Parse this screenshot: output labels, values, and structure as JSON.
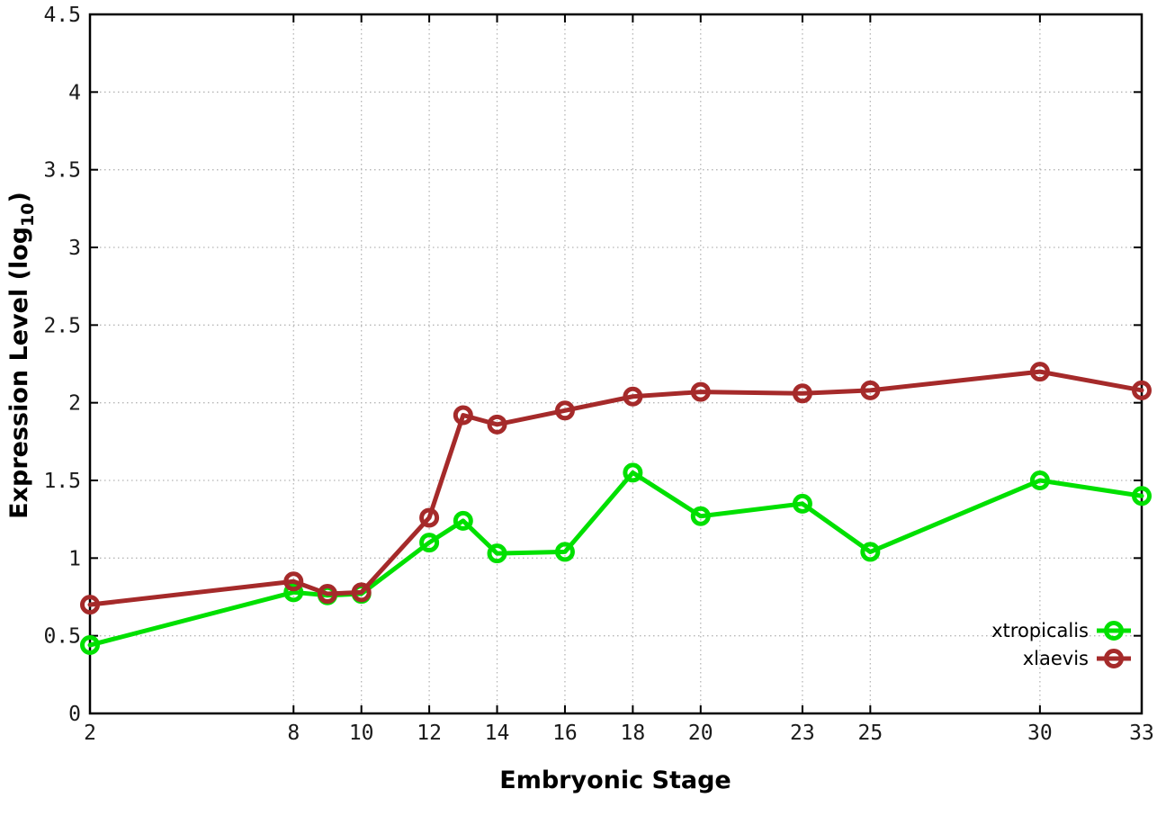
{
  "chart_data": {
    "type": "line",
    "title": "",
    "xlabel": "Embryonic Stage",
    "ylabel": "Expression Level (log10)",
    "ylabel_parts": {
      "prefix": "Expression Level (log",
      "subscript": "10",
      "suffix": ")"
    },
    "xlim": [
      2,
      33
    ],
    "ylim": [
      0,
      4.5
    ],
    "y_tick_step": 0.5,
    "x_ticks": [
      2,
      8,
      10,
      12,
      14,
      16,
      18,
      20,
      23,
      25,
      30,
      33
    ],
    "x": [
      2,
      8,
      9,
      10,
      12,
      13,
      14,
      16,
      18,
      20,
      23,
      25,
      30,
      33
    ],
    "series": [
      {
        "name": "xtropicalis",
        "color": "#00e000",
        "values": [
          0.44,
          0.78,
          0.76,
          0.77,
          1.1,
          1.24,
          1.03,
          1.04,
          1.55,
          1.27,
          1.35,
          1.04,
          1.5,
          1.4
        ]
      },
      {
        "name": "xlaevis",
        "color": "#a52a2a",
        "values": [
          0.7,
          0.85,
          0.77,
          0.78,
          1.26,
          1.92,
          1.86,
          1.95,
          2.04,
          2.07,
          2.06,
          2.08,
          2.2,
          2.08
        ]
      }
    ],
    "legend": {
      "position": "inside-bottom-right",
      "entries": [
        "xtropicalis",
        "xlaevis"
      ]
    },
    "grid": "dotted",
    "marker": "open-circle",
    "colors": {
      "grid": "#b5b5b5",
      "axis": "#000000",
      "background": "#ffffff"
    }
  }
}
